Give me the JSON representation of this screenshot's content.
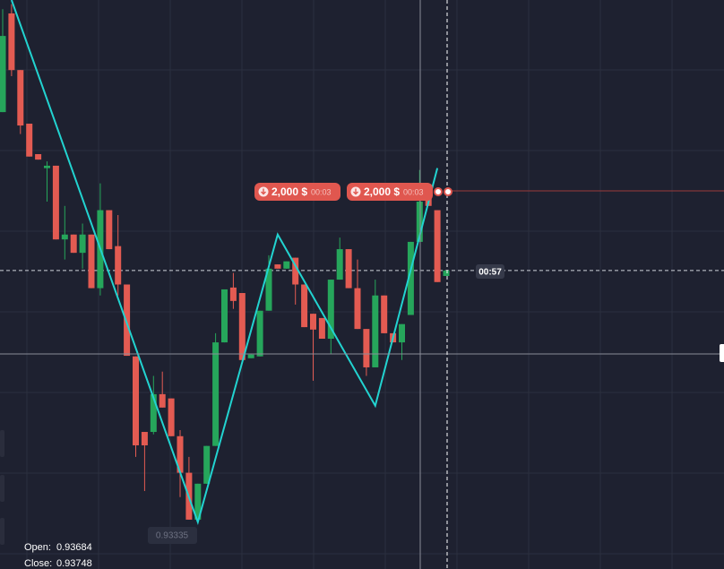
{
  "chart_data": {
    "type": "candlestick",
    "ylim": [
      0.93258,
      0.94192
    ],
    "colors": {
      "up": "#26a65b",
      "down": "#e35b52",
      "zigzag": "#22d3d0"
    },
    "candles": [
      [
        0.94008,
        0.94177,
        0.94008,
        0.94133
      ],
      [
        0.9417,
        0.94185,
        0.94067,
        0.94077
      ],
      [
        0.94077,
        0.94077,
        0.93972,
        0.93986
      ],
      [
        0.93989,
        0.93989,
        0.93935,
        0.93935
      ],
      [
        0.93939,
        0.93939,
        0.9393,
        0.9393
      ],
      [
        0.93916,
        0.93927,
        0.93861,
        0.9392
      ],
      [
        0.9392,
        0.9392,
        0.93799,
        0.93799
      ],
      [
        0.93799,
        0.93854,
        0.93766,
        0.93807
      ],
      [
        0.93807,
        0.93807,
        0.93777,
        0.93777
      ],
      [
        0.93777,
        0.93825,
        0.93751,
        0.93807
      ],
      [
        0.93807,
        0.93807,
        0.93719,
        0.93719
      ],
      [
        0.93719,
        0.93891,
        0.93707,
        0.93847
      ],
      [
        0.93847,
        0.93847,
        0.93783,
        0.93783
      ],
      [
        0.93788,
        0.93839,
        0.93707,
        0.93725
      ],
      [
        0.93725,
        0.93725,
        0.93608,
        0.93608
      ],
      [
        0.93607,
        0.93607,
        0.93442,
        0.93461
      ],
      [
        0.93483,
        0.93483,
        0.93386,
        0.93461
      ],
      [
        0.93483,
        0.93575,
        0.93479,
        0.93545
      ],
      [
        0.93545,
        0.93582,
        0.93523,
        0.93523
      ],
      [
        0.93538,
        0.93538,
        0.93476,
        0.93476
      ],
      [
        0.93476,
        0.93486,
        0.93376,
        0.93416
      ],
      [
        0.93416,
        0.93442,
        0.93339,
        0.93339
      ],
      [
        0.93339,
        0.93398,
        0.93335,
        0.93398
      ],
      [
        0.93398,
        0.9346,
        0.93398,
        0.9346
      ],
      [
        0.9346,
        0.93645,
        0.9346,
        0.9363
      ],
      [
        0.9363,
        0.93717,
        0.9363,
        0.93717
      ],
      [
        0.9372,
        0.93744,
        0.93685,
        0.93698
      ],
      [
        0.93711,
        0.93711,
        0.93601,
        0.93601
      ],
      [
        0.93604,
        0.9361,
        0.93604,
        0.9361
      ],
      [
        0.93607,
        0.93682,
        0.93607,
        0.93682
      ],
      [
        0.93682,
        0.93773,
        0.93682,
        0.93751
      ],
      [
        0.93758,
        0.93758,
        0.93751,
        0.93751
      ],
      [
        0.93751,
        0.93763,
        0.93751,
        0.93763
      ],
      [
        0.93769,
        0.93769,
        0.93692,
        0.93725
      ],
      [
        0.93725,
        0.93725,
        0.93655,
        0.93655
      ],
      [
        0.93677,
        0.93677,
        0.93567,
        0.93651
      ],
      [
        0.9367,
        0.9367,
        0.93636,
        0.93636
      ],
      [
        0.93636,
        0.93733,
        0.93611,
        0.93733
      ],
      [
        0.93733,
        0.93802,
        0.93733,
        0.93783
      ],
      [
        0.93783,
        0.93783,
        0.93719,
        0.93719
      ],
      [
        0.93719,
        0.93766,
        0.93652,
        0.93652
      ],
      [
        0.93652,
        0.93652,
        0.93575,
        0.93589
      ],
      [
        0.93589,
        0.93733,
        0.93589,
        0.93707
      ],
      [
        0.93707,
        0.93707,
        0.93645,
        0.93645
      ],
      [
        0.93645,
        0.93645,
        0.9363,
        0.9363
      ],
      [
        0.9363,
        0.9366,
        0.93601,
        0.9366
      ],
      [
        0.93675,
        0.93795,
        0.93675,
        0.93795
      ],
      [
        0.93795,
        0.93913,
        0.93795,
        0.93861
      ],
      [
        0.93883,
        0.93883,
        0.93854,
        0.93854
      ],
      [
        0.93847,
        0.93847,
        0.93729,
        0.93729
      ],
      [
        0.93739,
        0.93748,
        0.93739,
        0.93748
      ]
    ],
    "zigzag": {
      "x": [
        1,
        22,
        31,
        42,
        49
      ],
      "values": [
        0.94192,
        0.93335,
        0.93807,
        0.93526,
        0.93916
      ]
    },
    "low_label": 0.93335
  },
  "trades": [
    {
      "amount": "2,000 $",
      "time": "00:03"
    },
    {
      "amount": "2,000 $",
      "time": "00:03"
    }
  ],
  "timer": "00:57",
  "ohlc": {
    "open_label": "Open:",
    "open": 0.93684,
    "close_label": "Close:",
    "close": 0.93748
  }
}
